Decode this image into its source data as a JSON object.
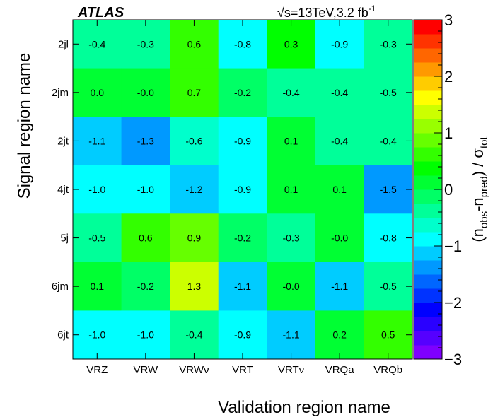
{
  "chart_data": {
    "type": "heatmap",
    "experiment_label": "ATLAS",
    "energy_label": "√s=13TeV,3.2 fb",
    "energy_sup": "-1",
    "x_categories": [
      "VRZ",
      "VRW",
      "VRWν",
      "VRT",
      "VRTν",
      "VRQa",
      "VRQb"
    ],
    "y_categories": [
      "2jl",
      "2jm",
      "2jt",
      "4jt",
      "5j",
      "6jm",
      "6jt"
    ],
    "xlabel": "Validation region name",
    "ylabel": "Signal region name",
    "zlabel": {
      "main": "(n",
      "sub1": "obs",
      "mid": "-n",
      "sub2": "pred",
      "end": ") / σ",
      "sub3": "tot"
    },
    "zlim": [
      -3,
      3
    ],
    "z_ticks": [
      "3",
      "2",
      "1",
      "0",
      "−1",
      "−2",
      "−3"
    ],
    "values": [
      [
        -0.4,
        -0.3,
        0.6,
        -0.8,
        0.3,
        -0.9,
        -0.3
      ],
      [
        0.0,
        -0.0,
        0.7,
        -0.2,
        -0.4,
        -0.4,
        -0.5
      ],
      [
        -1.1,
        -1.3,
        -0.6,
        -0.9,
        0.1,
        -0.4,
        -0.4
      ],
      [
        -1.0,
        -1.0,
        -1.2,
        -0.9,
        0.1,
        0.1,
        -1.5
      ],
      [
        -0.5,
        0.6,
        0.9,
        -0.2,
        -0.3,
        -0.0,
        -0.8
      ],
      [
        0.1,
        -0.2,
        1.3,
        -1.1,
        -0.0,
        -1.1,
        -0.5
      ],
      [
        -1.0,
        -1.0,
        -0.4,
        -0.9,
        -1.1,
        0.2,
        0.5
      ]
    ],
    "value_labels": [
      [
        "-0.4",
        "-0.3",
        "0.6",
        "-0.8",
        "0.3",
        "-0.9",
        "-0.3"
      ],
      [
        "0.0",
        "-0.0",
        "0.7",
        "-0.2",
        "-0.4",
        "-0.4",
        "-0.5"
      ],
      [
        "-1.1",
        "-1.3",
        "-0.6",
        "-0.9",
        "0.1",
        "-0.4",
        "-0.4"
      ],
      [
        "-1.0",
        "-1.0",
        "-1.2",
        "-0.9",
        "0.1",
        "0.1",
        "-1.5"
      ],
      [
        "-0.5",
        "0.6",
        "0.9",
        "-0.2",
        "-0.3",
        "-0.0",
        "-0.8"
      ],
      [
        "0.1",
        "-0.2",
        "1.3",
        "-1.1",
        "-0.0",
        "-1.1",
        "-0.5"
      ],
      [
        "-1.0",
        "-1.0",
        "-0.4",
        "-0.9",
        "-1.1",
        "0.2",
        "0.5"
      ]
    ],
    "palette": [
      "#7f00ff",
      "#5500ff",
      "#2a00ff",
      "#0000ff",
      "#0033ff",
      "#0066ff",
      "#0099ff",
      "#00ccff",
      "#00ffff",
      "#00ffcc",
      "#00ff99",
      "#00ff66",
      "#00ff33",
      "#00ff00",
      "#33ff00",
      "#66ff00",
      "#99ff00",
      "#ccff00",
      "#ffff00",
      "#ffcc00",
      "#ff9900",
      "#ff6600",
      "#ff3300",
      "#ff0000"
    ]
  }
}
